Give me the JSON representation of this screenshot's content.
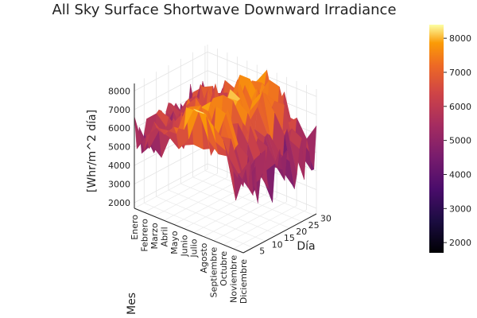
{
  "chart_data": {
    "type": "surface",
    "title": "All Sky Surface Shortwave Downward Irradiance",
    "xlabel": "Mes",
    "ylabel": "Día",
    "zlabel": "[Whr/m^2 día]",
    "x_categories": [
      "Enero",
      "Febrero",
      "Marzo",
      "Abril",
      "Mayo",
      "Junio",
      "Julio",
      "Agosto",
      "Septiembre",
      "Octubre",
      "Noviembre",
      "Diciembre"
    ],
    "y_ticks": [
      5,
      10,
      15,
      20,
      25,
      30
    ],
    "z_ticks": [
      3000,
      4000,
      5000,
      6000,
      7000,
      8000
    ],
    "z_ticks_extra": [
      2000
    ],
    "ylim": [
      1,
      31
    ],
    "zlim": [
      1700,
      8400
    ],
    "colorbar": {
      "ticks": [
        2000,
        3000,
        4000,
        5000,
        6000,
        7000,
        8000
      ],
      "range": [
        1700,
        8400
      ],
      "colormap": "inferno"
    },
    "monthly_mean": [
      5500,
      5650,
      5900,
      6250,
      6600,
      7000,
      7400,
      7350,
      6800,
      6300,
      5600,
      5100
    ],
    "grid": true,
    "legend": "none"
  }
}
